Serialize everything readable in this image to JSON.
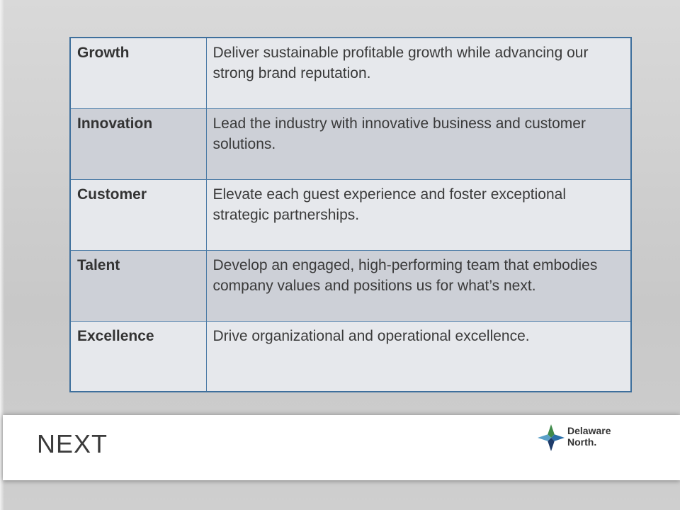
{
  "table": {
    "rows": [
      {
        "term": "Growth",
        "description": "Deliver sustainable profitable growth while advancing our strong brand reputation."
      },
      {
        "term": "Innovation",
        "description": "Lead the industry with innovative business and customer solutions."
      },
      {
        "term": "Customer",
        "description": "Elevate each guest experience and foster exceptional strategic partnerships."
      },
      {
        "term": "Talent",
        "description": "Develop an engaged, high-performing team that embodies company values and positions us for what’s next."
      },
      {
        "term": "Excellence",
        "description": "Drive organizational and operational excellence."
      }
    ]
  },
  "footer": {
    "left_logo_text": "NEXT",
    "right_logo": {
      "line1": "Delaware",
      "line2": "North."
    }
  },
  "colors": {
    "table_border": "#3e6f9c",
    "row_light": "#e6e8ec",
    "row_dark": "#cdd0d7",
    "logo_blue": "#2a6fa8",
    "logo_green": "#3f8a4a",
    "logo_navy": "#1d3b6a"
  }
}
